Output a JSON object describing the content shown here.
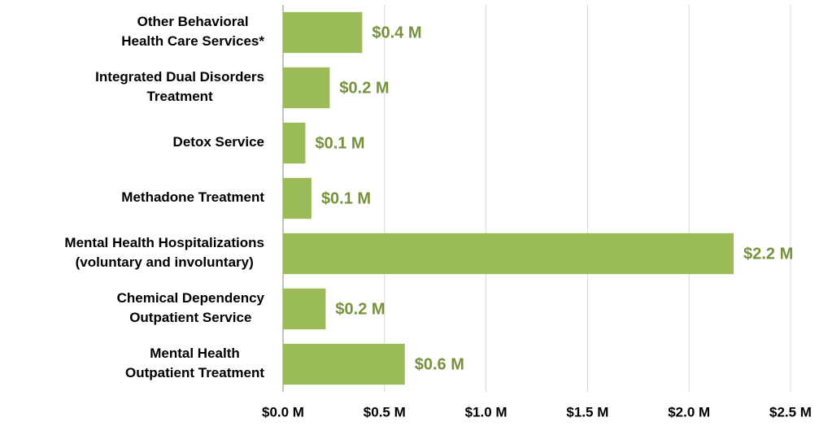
{
  "chart_data": {
    "type": "barh",
    "categories": [
      "Other Behavioral\nHealth Care Services*",
      "Integrated Dual Disorders\nTreatment",
      "Detox Service",
      "Methadone Treatment",
      "Mental Health Hospitalizations\n(voluntary and involuntary)",
      "Chemical Dependency\nOutpatient Service",
      "Mental Health\nOutpatient Treatment"
    ],
    "values": [
      0.39,
      0.23,
      0.11,
      0.14,
      2.22,
      0.21,
      0.6
    ],
    "value_labels": [
      "$0.4 M",
      "$0.2 M",
      "$0.1 M",
      "$0.1 M",
      "$2.2 M",
      "$0.2 M",
      "$0.6 M"
    ],
    "color": "#9bbb59",
    "label_color": "#76923c",
    "xlim": [
      0,
      2.5
    ],
    "xticks": [
      {
        "value": 0,
        "label": "$0.0 M"
      },
      {
        "value": 0.5,
        "label": "$0.5 M"
      },
      {
        "value": 1,
        "label": "$1.0 M"
      },
      {
        "value": 1.5,
        "label": "$1.5 M"
      },
      {
        "value": 2,
        "label": "$2.0 M"
      },
      {
        "value": 2.5,
        "label": "$2.5 M"
      }
    ],
    "grid": true
  }
}
